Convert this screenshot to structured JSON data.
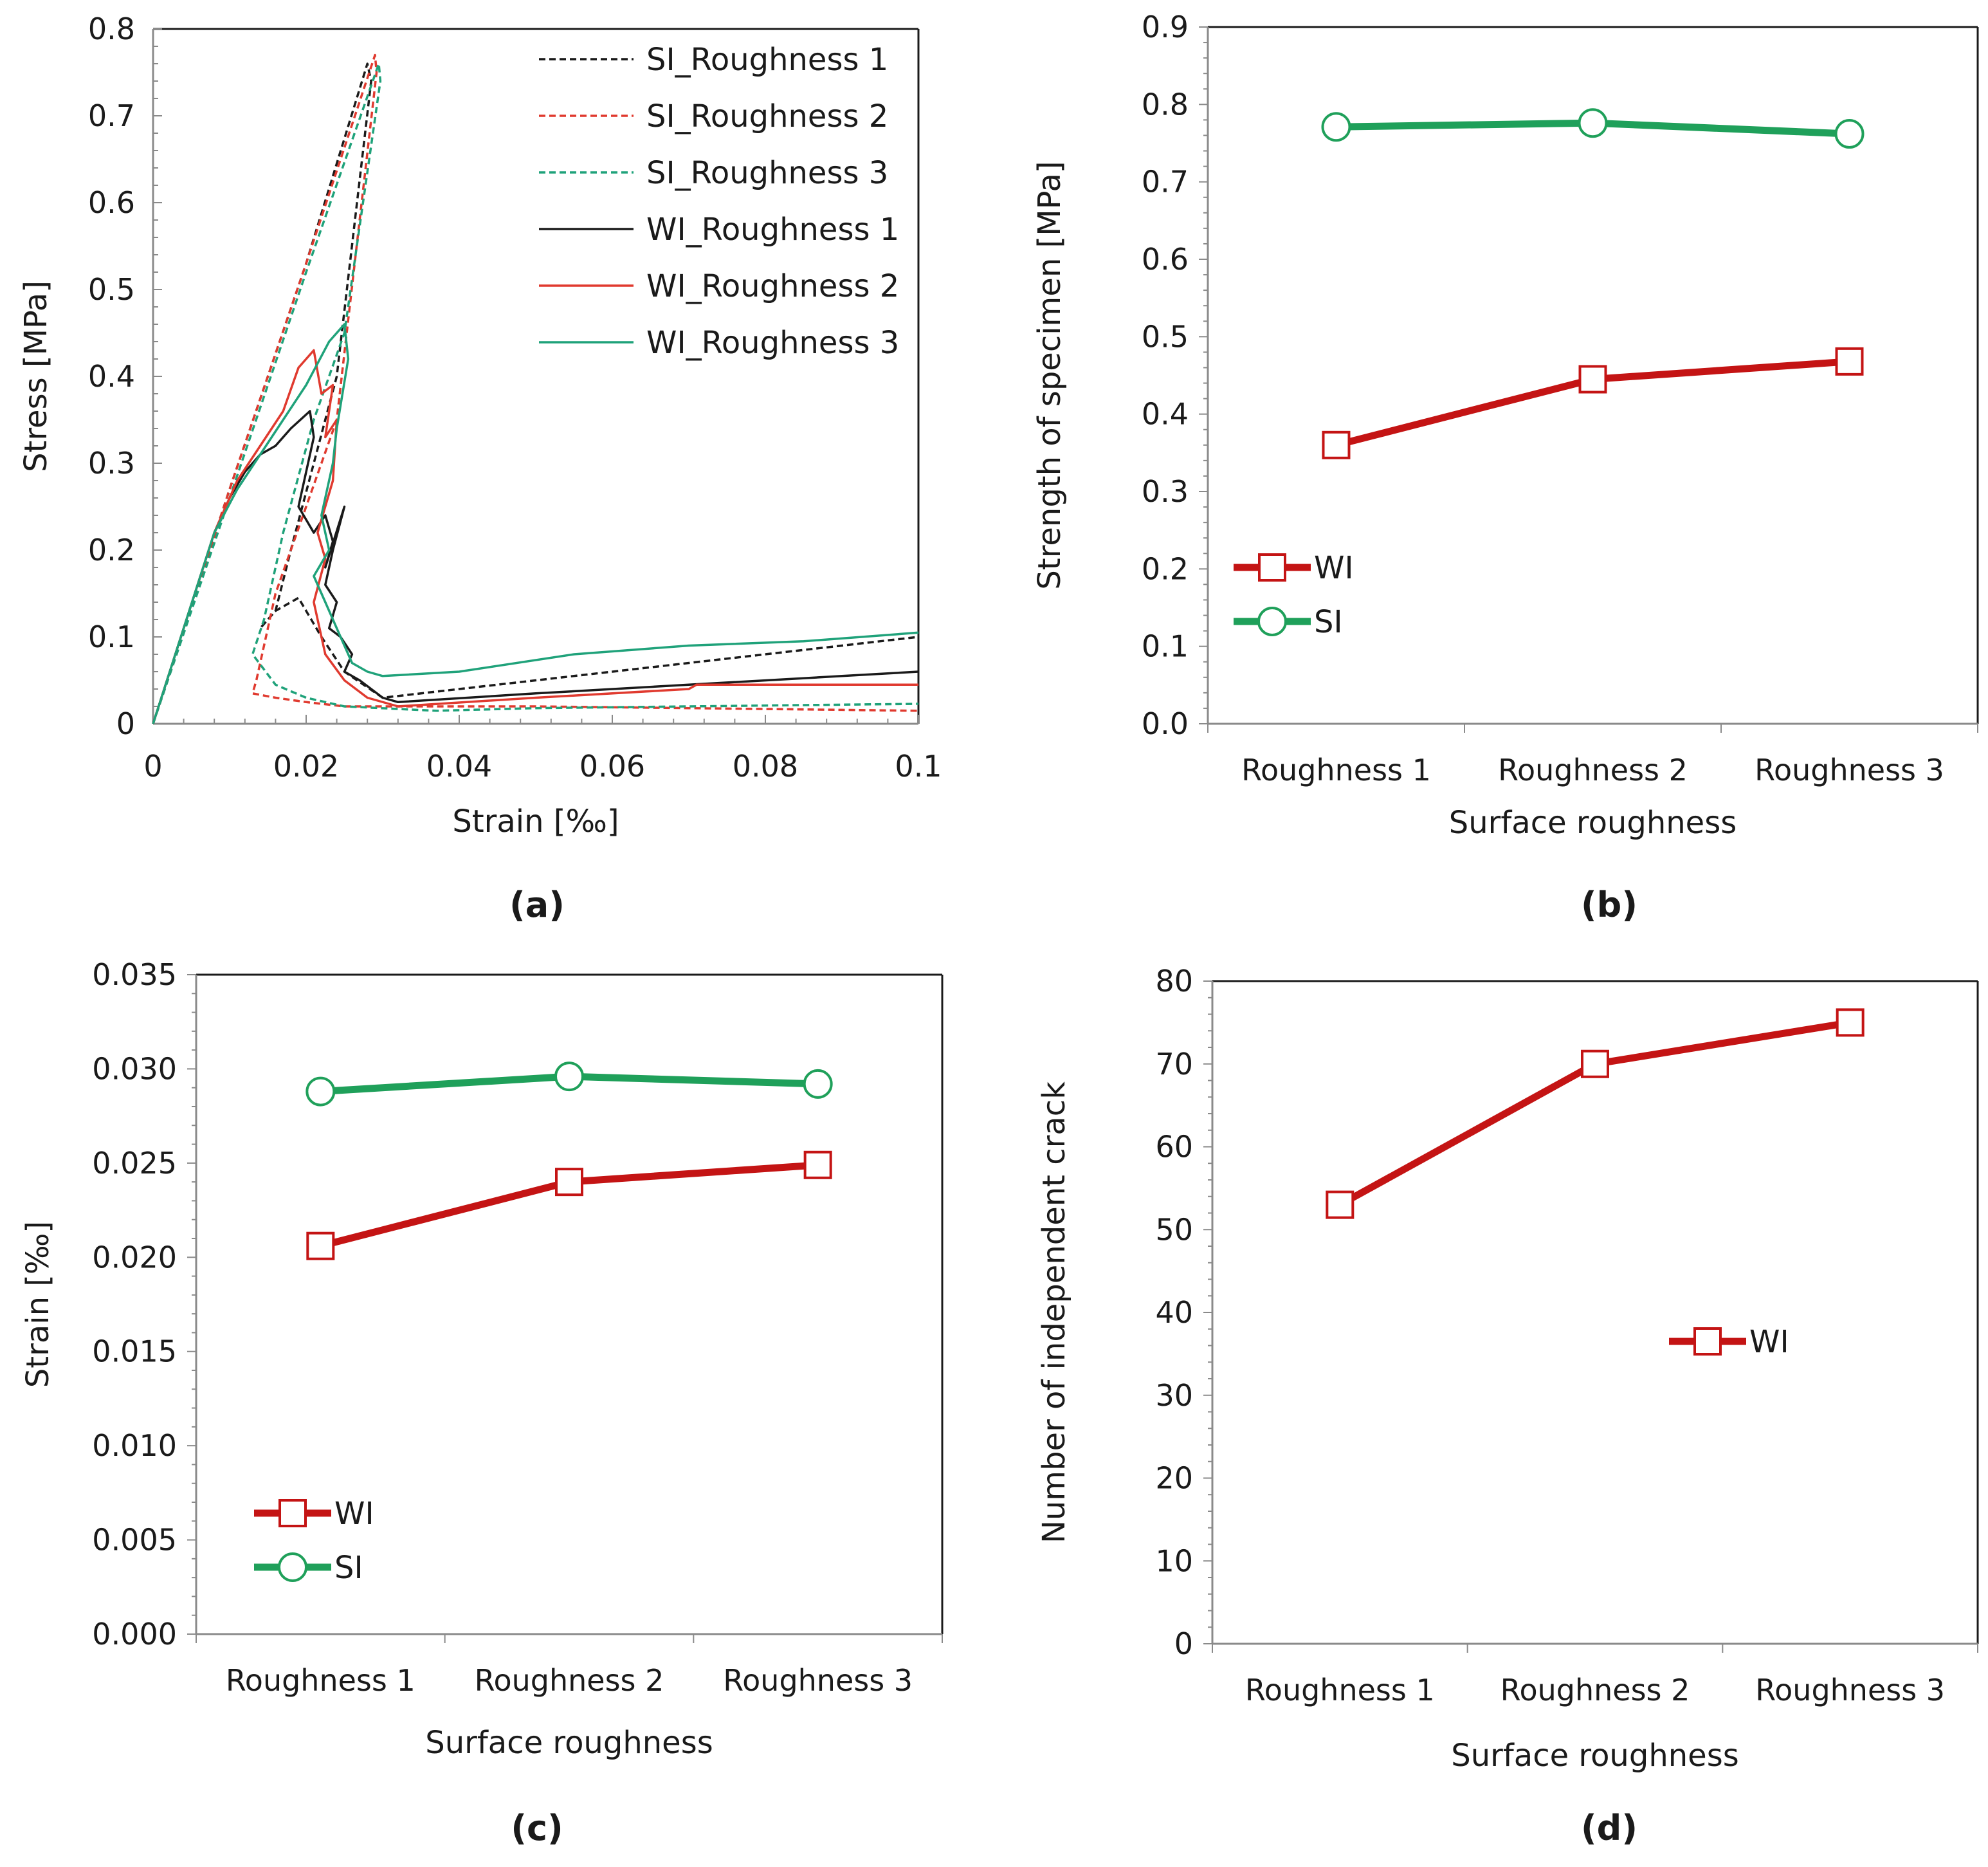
{
  "chart_data": [
    {
      "panel": "(a)",
      "type": "line",
      "xlabel": "Strain [‰]",
      "ylabel": "Stress [MPa]",
      "xlim": [
        0,
        0.1
      ],
      "ylim": [
        0,
        0.8
      ],
      "xticks": [
        "0",
        "0.02",
        "0.04",
        "0.06",
        "0.08",
        "0.1"
      ],
      "yticks": [
        "0",
        "0.1",
        "0.2",
        "0.3",
        "0.4",
        "0.5",
        "0.6",
        "0.7",
        "0.8"
      ],
      "legend_position": "top-right",
      "series": [
        {
          "name": "SI_Roughness 1",
          "color": "#1a1a1a",
          "dashed": true,
          "x": [
            0,
            0.01,
            0.02,
            0.028,
            0.0285,
            0.024,
            0.021,
            0.018,
            0.016,
            0.014,
            0.016,
            0.019,
            0.022,
            0.025,
            0.03,
            0.05,
            0.07,
            0.09,
            0.1
          ],
          "y": [
            0,
            0.27,
            0.53,
            0.76,
            0.74,
            0.4,
            0.3,
            0.2,
            0.13,
            0.11,
            0.13,
            0.145,
            0.1,
            0.06,
            0.03,
            0.05,
            0.07,
            0.09,
            0.1
          ]
        },
        {
          "name": "SI_Roughness 2",
          "color": "#e03a2f",
          "dashed": true,
          "x": [
            0,
            0.01,
            0.02,
            0.029,
            0.0292,
            0.024,
            0.02,
            0.016,
            0.0135,
            0.013,
            0.016,
            0.02,
            0.025,
            0.035,
            0.05,
            0.07,
            0.09,
            0.1
          ],
          "y": [
            0,
            0.27,
            0.53,
            0.77,
            0.75,
            0.35,
            0.25,
            0.15,
            0.05,
            0.035,
            0.03,
            0.025,
            0.02,
            0.02,
            0.02,
            0.018,
            0.016,
            0.015
          ]
        },
        {
          "name": "SI_Roughness 3",
          "color": "#1fa27a",
          "dashed": true,
          "x": [
            0,
            0.01,
            0.02,
            0.0295,
            0.0297,
            0.025,
            0.021,
            0.017,
            0.0145,
            0.013,
            0.016,
            0.02,
            0.025,
            0.037,
            0.05,
            0.07,
            0.09,
            0.1
          ],
          "y": [
            0,
            0.26,
            0.52,
            0.76,
            0.74,
            0.45,
            0.35,
            0.22,
            0.12,
            0.08,
            0.045,
            0.03,
            0.02,
            0.015,
            0.018,
            0.02,
            0.022,
            0.023
          ]
        },
        {
          "name": "WI_Roughness 1",
          "color": "#1a1a1a",
          "dashed": false,
          "x": [
            0,
            0.008,
            0.01,
            0.012,
            0.014,
            0.016,
            0.018,
            0.0205,
            0.021,
            0.019,
            0.021,
            0.0225,
            0.0235,
            0.0225,
            0.025,
            0.0235,
            0.0225,
            0.024,
            0.023,
            0.0245,
            0.026,
            0.025,
            0.027,
            0.03,
            0.032,
            0.05,
            0.07,
            0.09,
            0.1
          ],
          "y": [
            0,
            0.22,
            0.26,
            0.29,
            0.31,
            0.32,
            0.34,
            0.36,
            0.33,
            0.25,
            0.22,
            0.24,
            0.21,
            0.18,
            0.25,
            0.2,
            0.16,
            0.14,
            0.11,
            0.1,
            0.08,
            0.06,
            0.05,
            0.03,
            0.025,
            0.035,
            0.045,
            0.055,
            0.06
          ]
        },
        {
          "name": "WI_Roughness 2",
          "color": "#e03a2f",
          "dashed": false,
          "x": [
            0,
            0.008,
            0.011,
            0.014,
            0.017,
            0.019,
            0.021,
            0.022,
            0.0235,
            0.0225,
            0.024,
            0.0235,
            0.0215,
            0.0225,
            0.021,
            0.022,
            0.0225,
            0.025,
            0.028,
            0.032,
            0.05,
            0.07,
            0.071,
            0.09,
            0.1
          ],
          "y": [
            0,
            0.22,
            0.28,
            0.32,
            0.36,
            0.41,
            0.43,
            0.38,
            0.39,
            0.33,
            0.35,
            0.28,
            0.22,
            0.19,
            0.14,
            0.1,
            0.08,
            0.05,
            0.03,
            0.02,
            0.03,
            0.04,
            0.045,
            0.045,
            0.045
          ]
        },
        {
          "name": "WI_Roughness 3",
          "color": "#1fa27a",
          "dashed": false,
          "x": [
            0,
            0.008,
            0.011,
            0.014,
            0.017,
            0.02,
            0.023,
            0.025,
            0.0255,
            0.024,
            0.0235,
            0.022,
            0.023,
            0.021,
            0.0225,
            0.0245,
            0.026,
            0.028,
            0.03,
            0.04,
            0.055,
            0.07,
            0.085,
            0.1
          ],
          "y": [
            0,
            0.22,
            0.27,
            0.31,
            0.35,
            0.39,
            0.44,
            0.46,
            0.42,
            0.34,
            0.3,
            0.24,
            0.2,
            0.17,
            0.14,
            0.1,
            0.07,
            0.06,
            0.055,
            0.06,
            0.08,
            0.09,
            0.095,
            0.105
          ]
        }
      ]
    },
    {
      "panel": "(b)",
      "type": "line",
      "categories": [
        "Roughness 1",
        "Roughness 2",
        "Roughness 3"
      ],
      "xlabel": "Surface roughness",
      "ylabel": "Strength of specimen [MPa]",
      "ylim": [
        0,
        0.9
      ],
      "yticks": [
        "0.0",
        "0.1",
        "0.2",
        "0.3",
        "0.4",
        "0.5",
        "0.6",
        "0.7",
        "0.8",
        "0.9"
      ],
      "legend_position": "lower-left",
      "series": [
        {
          "name": "WI",
          "color": "#c41414",
          "marker": "square",
          "values": [
            0.36,
            0.445,
            0.468
          ]
        },
        {
          "name": "SI",
          "color": "#1fa05a",
          "marker": "circle",
          "values": [
            0.771,
            0.776,
            0.762
          ]
        }
      ]
    },
    {
      "panel": "(c)",
      "type": "line",
      "categories": [
        "Roughness 1",
        "Roughness 2",
        "Roughness 3"
      ],
      "xlabel": "Surface roughness",
      "ylabel": "Strain [‰]",
      "ylim": [
        0,
        0.035
      ],
      "yticks": [
        "0.000",
        "0.005",
        "0.010",
        "0.015",
        "0.020",
        "0.025",
        "0.030",
        "0.035"
      ],
      "legend_position": "lower-left",
      "series": [
        {
          "name": "WI",
          "color": "#c41414",
          "marker": "square",
          "values": [
            0.0206,
            0.024,
            0.0249
          ]
        },
        {
          "name": "SI",
          "color": "#1fa05a",
          "marker": "circle",
          "values": [
            0.0288,
            0.0296,
            0.0292
          ]
        }
      ]
    },
    {
      "panel": "(d)",
      "type": "line",
      "categories": [
        "Roughness 1",
        "Roughness 2",
        "Roughness 3"
      ],
      "xlabel": "Surface roughness",
      "ylabel": "Number of independent crack",
      "ylim": [
        0,
        80
      ],
      "yticks": [
        "0",
        "10",
        "20",
        "30",
        "40",
        "50",
        "60",
        "70",
        "80"
      ],
      "legend_position": "center-right",
      "series": [
        {
          "name": "WI",
          "color": "#c41414",
          "marker": "square",
          "values": [
            53,
            70,
            75
          ]
        }
      ]
    }
  ]
}
